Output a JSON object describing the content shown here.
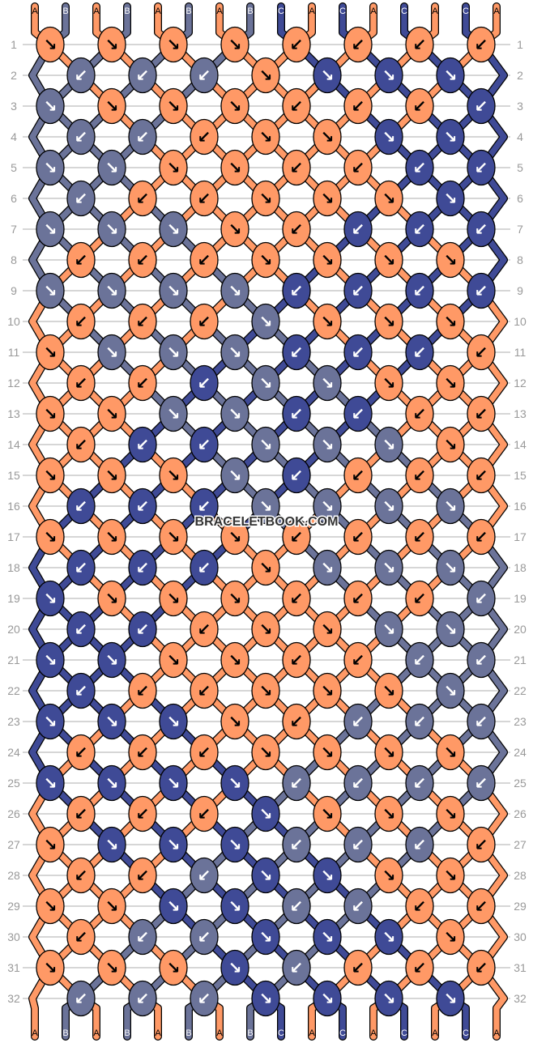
{
  "watermark": "BRACELETBOOK.COM",
  "colors": {
    "A": "#FF9966",
    "B": "#6B7399",
    "C": "#3F4A96"
  },
  "arrow_glyphs": {
    "r": "↘",
    "l": "↙"
  },
  "strings_top": [
    "A",
    "B",
    "A",
    "B",
    "A",
    "B",
    "A",
    "B",
    "C",
    "A",
    "C",
    "A",
    "C",
    "A",
    "C",
    "A"
  ],
  "strings_bottom": [
    "A",
    "B",
    "A",
    "B",
    "A",
    "B",
    "A",
    "B",
    "C",
    "A",
    "C",
    "A",
    "C",
    "A",
    "C",
    "A"
  ],
  "rows": [
    {
      "n": "1",
      "knots": [
        "Ar",
        "Ar",
        "Ar",
        "Ar",
        "Al",
        "Al",
        "Al",
        "Al"
      ]
    },
    {
      "n": "2",
      "knots": [
        "Bl",
        "Bl",
        "Bl",
        "Ar",
        "Cr",
        "Cr",
        "Cr"
      ]
    },
    {
      "n": "3",
      "knots": [
        "Br",
        "Ar",
        "Ar",
        "Ar",
        "Al",
        "Al",
        "Al",
        "Cl"
      ]
    },
    {
      "n": "4",
      "knots": [
        "Bl",
        "Bl",
        "Al",
        "Ar",
        "Ar",
        "Cr",
        "Cr"
      ]
    },
    {
      "n": "5",
      "knots": [
        "Br",
        "Br",
        "Ar",
        "Ar",
        "Al",
        "Al",
        "Cl",
        "Cl"
      ]
    },
    {
      "n": "6",
      "knots": [
        "Bl",
        "Al",
        "Al",
        "Ar",
        "Ar",
        "Ar",
        "Cr"
      ]
    },
    {
      "n": "7",
      "knots": [
        "Br",
        "Br",
        "Br",
        "Ar",
        "Al",
        "Cl",
        "Cl",
        "Cl"
      ]
    },
    {
      "n": "8",
      "knots": [
        "Al",
        "Al",
        "Al",
        "Ar",
        "Ar",
        "Ar",
        "Ar"
      ]
    },
    {
      "n": "9",
      "knots": [
        "Br",
        "Br",
        "Br",
        "Br",
        "Cl",
        "Cl",
        "Cl",
        "Cl"
      ]
    },
    {
      "n": "10",
      "knots": [
        "Al",
        "Al",
        "Al",
        "Br",
        "Ar",
        "Ar",
        "Ar"
      ]
    },
    {
      "n": "11",
      "knots": [
        "Ar",
        "Br",
        "Br",
        "Br",
        "Cl",
        "Cl",
        "Cl",
        "Al"
      ]
    },
    {
      "n": "12",
      "knots": [
        "Al",
        "Al",
        "Cl",
        "Br",
        "Br",
        "Ar",
        "Ar"
      ]
    },
    {
      "n": "13",
      "knots": [
        "Ar",
        "Ar",
        "Br",
        "Br",
        "Cl",
        "Cl",
        "Al",
        "Al"
      ]
    },
    {
      "n": "14",
      "knots": [
        "Al",
        "Cl",
        "Cl",
        "Br",
        "Br",
        "Br",
        "Ar"
      ]
    },
    {
      "n": "15",
      "knots": [
        "Ar",
        "Ar",
        "Ar",
        "Br",
        "Cl",
        "Al",
        "Al",
        "Al"
      ]
    },
    {
      "n": "16",
      "knots": [
        "Cl",
        "Cl",
        "Cl",
        "Br",
        "Br",
        "Br",
        "Br"
      ]
    },
    {
      "n": "17",
      "knots": [
        "Ar",
        "Ar",
        "Ar",
        "Ar",
        "Al",
        "Al",
        "Al",
        "Al"
      ]
    },
    {
      "n": "18",
      "knots": [
        "Cl",
        "Cl",
        "Cl",
        "Ar",
        "Br",
        "Br",
        "Br"
      ]
    },
    {
      "n": "19",
      "knots": [
        "Cr",
        "Ar",
        "Ar",
        "Ar",
        "Al",
        "Al",
        "Al",
        "Bl"
      ]
    },
    {
      "n": "20",
      "knots": [
        "Cl",
        "Cl",
        "Al",
        "Ar",
        "Ar",
        "Br",
        "Br"
      ]
    },
    {
      "n": "21",
      "knots": [
        "Cr",
        "Cr",
        "Ar",
        "Ar",
        "Al",
        "Al",
        "Bl",
        "Bl"
      ]
    },
    {
      "n": "22",
      "knots": [
        "Cl",
        "Al",
        "Al",
        "Ar",
        "Ar",
        "Ar",
        "Br"
      ]
    },
    {
      "n": "23",
      "knots": [
        "Cr",
        "Cr",
        "Cr",
        "Ar",
        "Al",
        "Bl",
        "Bl",
        "Bl"
      ]
    },
    {
      "n": "24",
      "knots": [
        "Al",
        "Al",
        "Al",
        "Ar",
        "Ar",
        "Ar",
        "Ar"
      ]
    },
    {
      "n": "25",
      "knots": [
        "Cr",
        "Cr",
        "Cr",
        "Cr",
        "Bl",
        "Bl",
        "Bl",
        "Bl"
      ]
    },
    {
      "n": "26",
      "knots": [
        "Al",
        "Al",
        "Al",
        "Cr",
        "Ar",
        "Ar",
        "Ar"
      ]
    },
    {
      "n": "27",
      "knots": [
        "Ar",
        "Cr",
        "Cr",
        "Cr",
        "Bl",
        "Bl",
        "Bl",
        "Al"
      ]
    },
    {
      "n": "28",
      "knots": [
        "Al",
        "Al",
        "Bl",
        "Cr",
        "Cr",
        "Ar",
        "Ar"
      ]
    },
    {
      "n": "29",
      "knots": [
        "Ar",
        "Ar",
        "Cr",
        "Cr",
        "Bl",
        "Bl",
        "Al",
        "Al"
      ]
    },
    {
      "n": "30",
      "knots": [
        "Al",
        "Bl",
        "Bl",
        "Cr",
        "Cr",
        "Cr",
        "Ar"
      ]
    },
    {
      "n": "31",
      "knots": [
        "Ar",
        "Ar",
        "Ar",
        "Cr",
        "Bl",
        "Al",
        "Al",
        "Al"
      ]
    },
    {
      "n": "32",
      "knots": [
        "Bl",
        "Bl",
        "Bl",
        "Cr",
        "Cr",
        "Cr",
        "Cr"
      ]
    }
  ]
}
